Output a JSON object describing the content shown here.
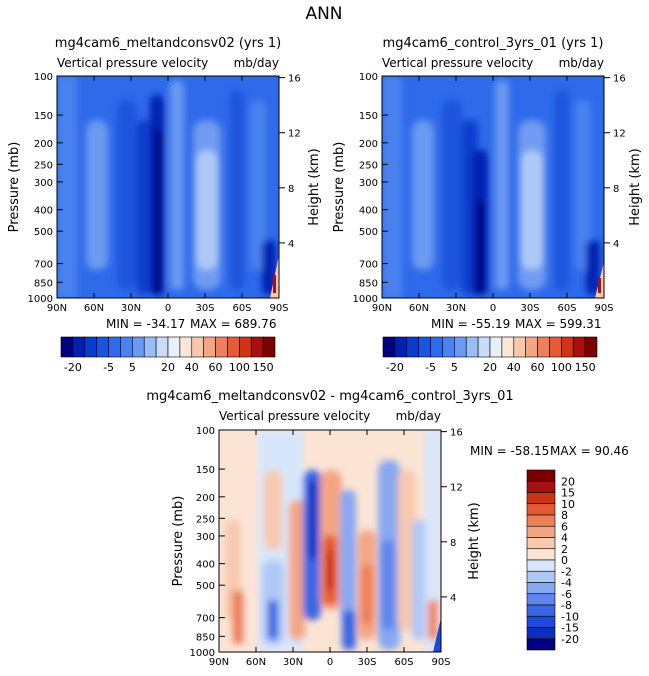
{
  "figure": {
    "title": "ANN",
    "diff_title": "mg4cam6_meltandconsv02 - mg4cam6_control_3yrs_01",
    "diff_min_label": "MIN = -58.15",
    "diff_max_label": "MAX =   90.46"
  },
  "colors": {
    "abs_scale": [
      "#000080",
      "#0020b0",
      "#0a3ccc",
      "#1a55dd",
      "#2e6aea",
      "#4a82ef",
      "#6a9af2",
      "#9cbcf5",
      "#c8dcf8",
      "#e6f0fb",
      "#fde6d6",
      "#f9c8ab",
      "#f5a582",
      "#ef7f5a",
      "#e65b34",
      "#d23216",
      "#a81010",
      "#7a0000"
    ],
    "diff_scale": [
      "#000080",
      "#0a2ec0",
      "#1e4ad8",
      "#3a66e6",
      "#5e86ec",
      "#88a8f1",
      "#b0c8f6",
      "#d8e6fb",
      "#fbe4d4",
      "#f8c9ae",
      "#f4a684",
      "#ee8058",
      "#e55a32",
      "#cc3216",
      "#a81010",
      "#7a0000"
    ]
  },
  "chart_data": [
    {
      "type": "heatmap",
      "title": "mg4cam6_meltandconsv02 (yrs 1)",
      "subtitle_left": "Vertical pressure velocity",
      "subtitle_right": "mb/day",
      "ylabel": "Pressure (mb)",
      "ylabel_right": "Height (km)",
      "x_ticks": [
        "90N",
        "60N",
        "30N",
        "0",
        "30S",
        "60S",
        "90S"
      ],
      "y_ticks": [
        "100",
        "150",
        "200",
        "250",
        "300",
        "400",
        "500",
        "700",
        "850",
        "1000"
      ],
      "y_right_ticks": [
        "16",
        "12",
        "8",
        "4"
      ],
      "min_label": "MIN = -34.17",
      "max_label": "MAX = 689.76",
      "colorbar_labels": [
        "-20",
        "-5",
        "5",
        "20",
        "40",
        "60",
        "100",
        "150"
      ]
    },
    {
      "type": "heatmap",
      "title": "mg4cam6_control_3yrs_01 (yrs 1)",
      "subtitle_left": "Vertical pressure velocity",
      "subtitle_right": "mb/day",
      "ylabel": "Pressure (mb)",
      "ylabel_right": "Height (km)",
      "x_ticks": [
        "90N",
        "60N",
        "30N",
        "0",
        "30S",
        "60S",
        "90S"
      ],
      "y_ticks": [
        "100",
        "150",
        "200",
        "250",
        "300",
        "400",
        "500",
        "700",
        "850",
        "1000"
      ],
      "y_right_ticks": [
        "16",
        "12",
        "8",
        "4"
      ],
      "min_label": "MIN = -55.19",
      "max_label": "MAX = 599.31",
      "colorbar_labels": [
        "-20",
        "-5",
        "5",
        "20",
        "40",
        "60",
        "100",
        "150"
      ]
    },
    {
      "type": "heatmap",
      "title": "",
      "subtitle_left": "Vertical pressure velocity",
      "subtitle_right": "mb/day",
      "ylabel": "Pressure (mb)",
      "ylabel_right": "Height (km)",
      "x_ticks": [
        "90N",
        "60N",
        "30N",
        "0",
        "30S",
        "60S",
        "90S"
      ],
      "y_ticks": [
        "100",
        "150",
        "200",
        "250",
        "300",
        "400",
        "500",
        "700",
        "850",
        "1000"
      ],
      "y_right_ticks": [
        "16",
        "12",
        "8",
        "4"
      ],
      "colorbar_labels": [
        "20",
        "15",
        "10",
        "8",
        "6",
        "4",
        "2",
        "0",
        "-2",
        "-4",
        "-6",
        "-8",
        "-10",
        "-15",
        "-20"
      ]
    }
  ]
}
